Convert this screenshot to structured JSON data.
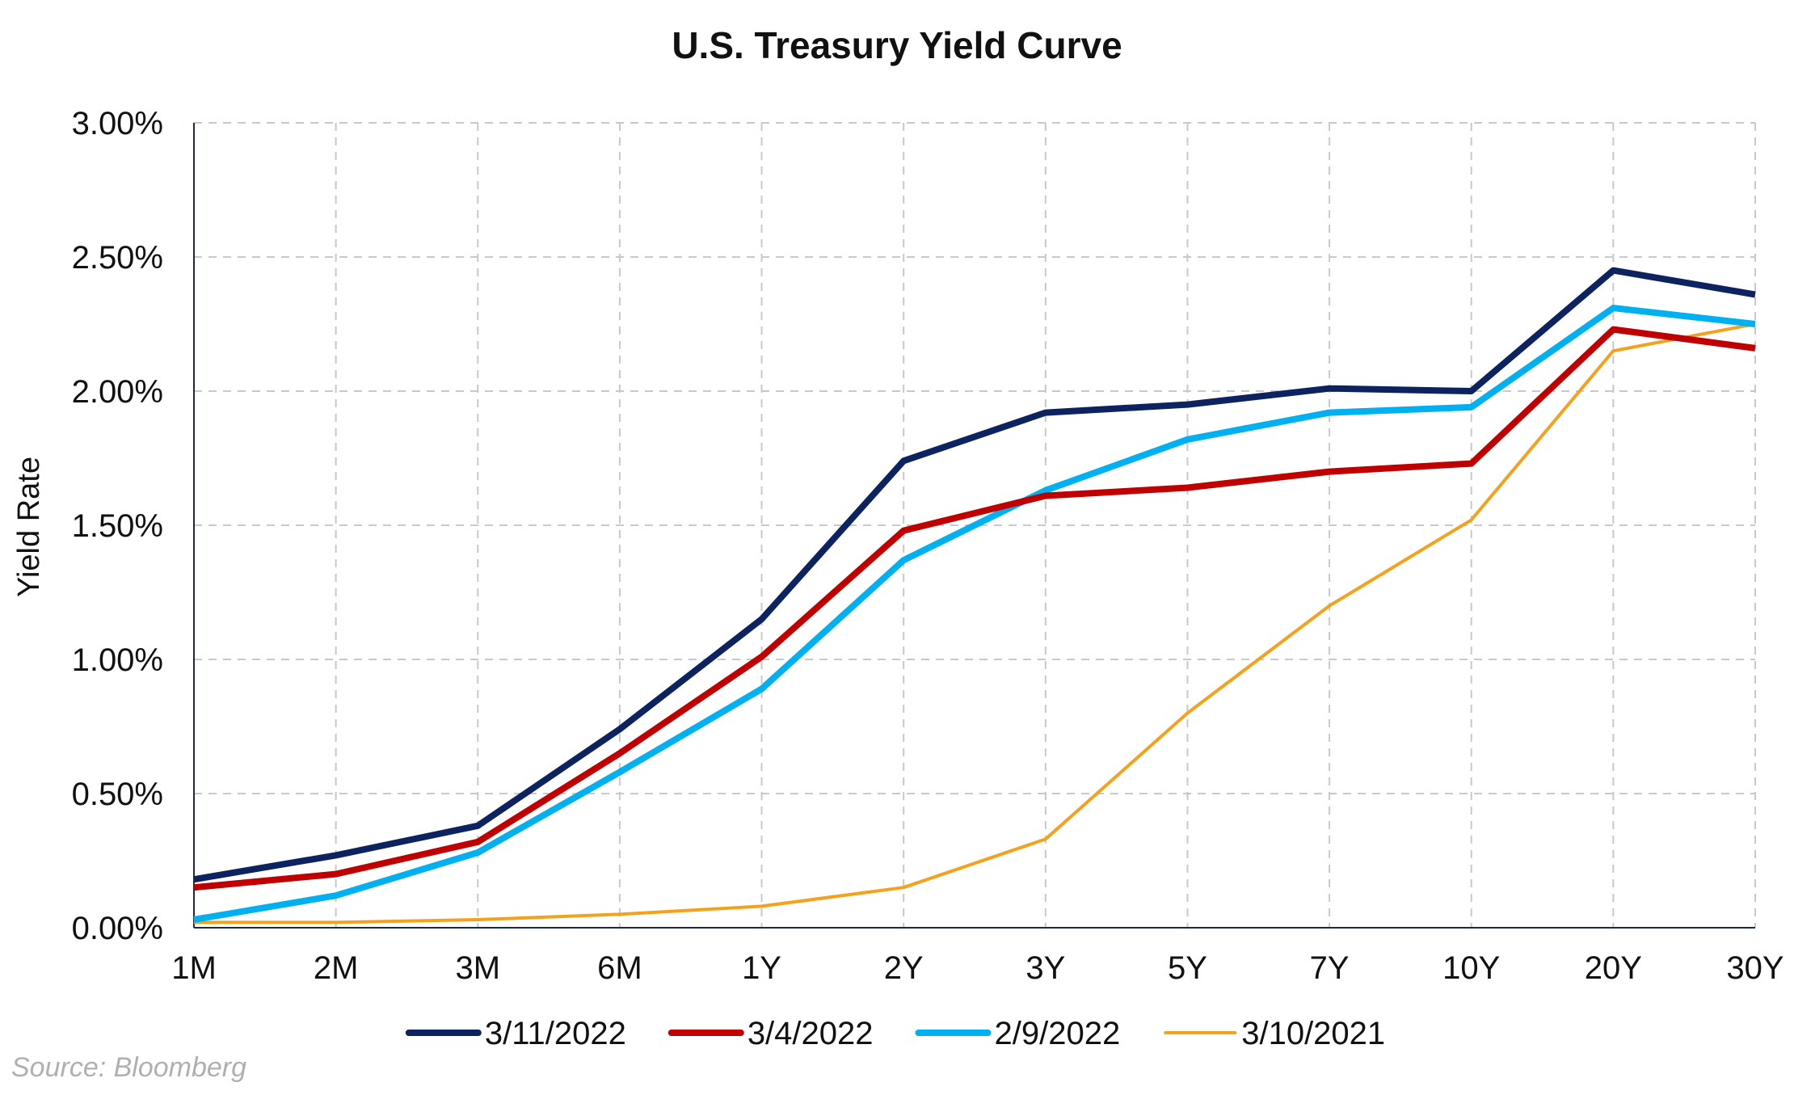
{
  "chart_data": {
    "type": "line",
    "title": "U.S. Treasury Yield Curve",
    "xlabel": "",
    "ylabel": "Yield Rate",
    "categories": [
      "1M",
      "2M",
      "3M",
      "6M",
      "1Y",
      "2Y",
      "3Y",
      "5Y",
      "7Y",
      "10Y",
      "20Y",
      "30Y"
    ],
    "ylim": [
      0,
      3
    ],
    "yticks": [
      "0.00%",
      "0.50%",
      "1.00%",
      "1.50%",
      "2.00%",
      "2.50%",
      "3.00%"
    ],
    "ytick_values": [
      0,
      0.5,
      1.0,
      1.5,
      2.0,
      2.5,
      3.0
    ],
    "grid": true,
    "legend_position": "bottom",
    "series": [
      {
        "name": "3/11/2022",
        "color": "#0d2360",
        "values": [
          0.18,
          0.27,
          0.38,
          0.74,
          1.15,
          1.74,
          1.92,
          1.95,
          2.01,
          2.0,
          2.45,
          2.36
        ]
      },
      {
        "name": "3/4/2022",
        "color": "#c00000",
        "values": [
          0.15,
          0.2,
          0.32,
          0.65,
          1.01,
          1.48,
          1.61,
          1.64,
          1.7,
          1.73,
          2.23,
          2.16
        ]
      },
      {
        "name": "2/9/2022",
        "color": "#00b0f0",
        "values": [
          0.03,
          0.12,
          0.28,
          0.58,
          0.89,
          1.37,
          1.63,
          1.82,
          1.92,
          1.94,
          2.31,
          2.25
        ]
      },
      {
        "name": "3/10/2021",
        "color": "#f5a11c",
        "values": [
          0.02,
          0.02,
          0.03,
          0.05,
          0.08,
          0.15,
          0.33,
          0.8,
          1.2,
          1.52,
          2.15,
          2.25
        ]
      }
    ]
  },
  "source": "Source: Bloomberg"
}
